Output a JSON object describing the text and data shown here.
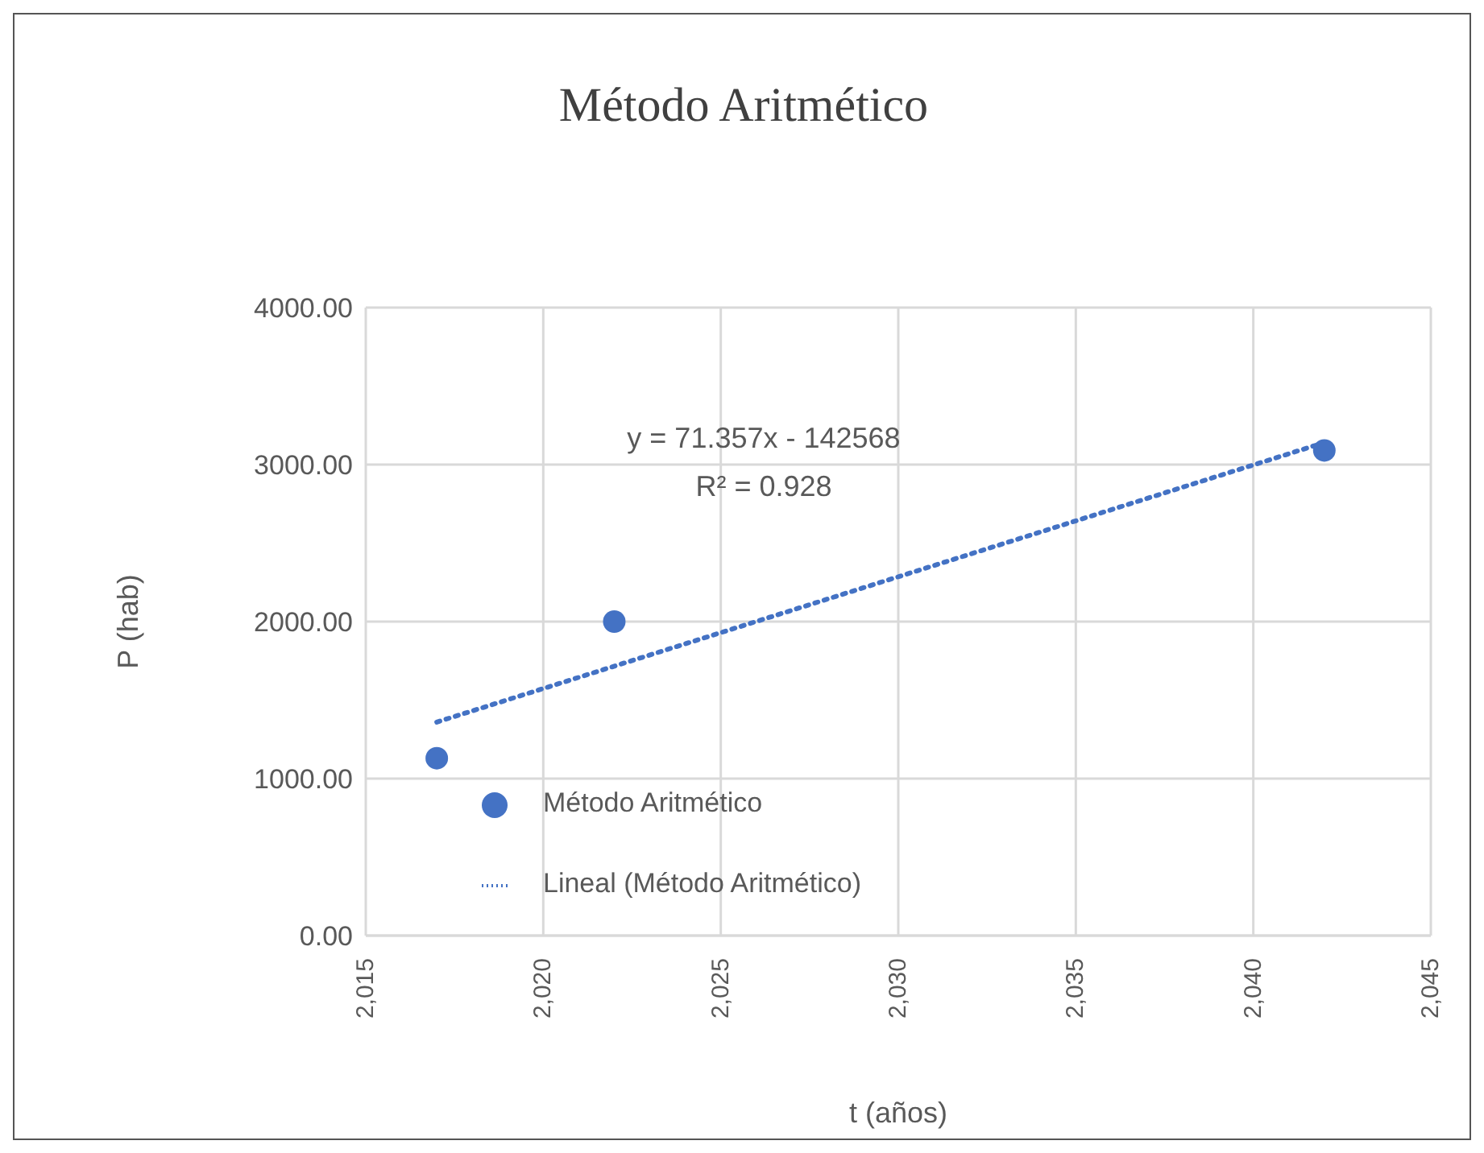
{
  "chart_data": {
    "type": "scatter",
    "title": "Método Aritmético",
    "xlabel": "t (años)",
    "ylabel": "P (hab)",
    "annotations": [
      "y = 71.357x - 142568",
      "R² = 0.928"
    ],
    "xlim": [
      2015,
      2045
    ],
    "xticks": [
      {
        "value": 2015,
        "label": "2,015"
      },
      {
        "value": 2020,
        "label": "2,020"
      },
      {
        "value": 2025,
        "label": "2,025"
      },
      {
        "value": 2030,
        "label": "2,030"
      },
      {
        "value": 2035,
        "label": "2,035"
      },
      {
        "value": 2040,
        "label": "2,040"
      },
      {
        "value": 2045,
        "label": "2,045"
      }
    ],
    "ylim": [
      0,
      4000
    ],
    "yticks": [
      {
        "value": 0,
        "label": "0.00"
      },
      {
        "value": 1000,
        "label": "1000.00"
      },
      {
        "value": 2000,
        "label": "2000.00"
      },
      {
        "value": 3000,
        "label": "3000.00"
      },
      {
        "value": 4000,
        "label": "4000.00"
      }
    ],
    "grid": true,
    "legend": "bottom left",
    "series": [
      {
        "name": "Método Aritmético",
        "color": "#4472c4",
        "marker": "circle",
        "x": [
          2017,
          2022,
          2042
        ],
        "values": [
          1130,
          2000,
          3090
        ]
      },
      {
        "name": "Lineal (Método Aritmético)",
        "type": "line",
        "color": "#4472c4",
        "line_style": "dotted",
        "marker": "none",
        "x": [
          2017,
          2042
        ],
        "values": [
          1360,
          3140
        ]
      }
    ]
  }
}
